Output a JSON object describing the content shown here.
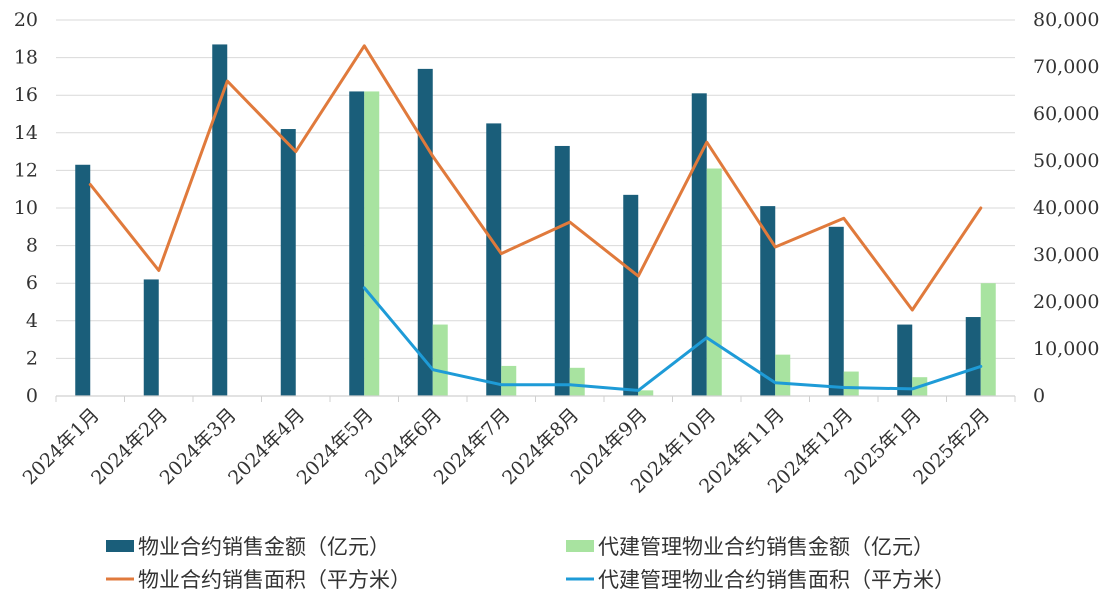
{
  "chart_data": {
    "type": "bar",
    "categories": [
      "2024年1月",
      "2024年2月",
      "2024年3月",
      "2024年4月",
      "2024年5月",
      "2024年6月",
      "2024年7月",
      "2024年8月",
      "2024年9月",
      "2024年10月",
      "2024年11月",
      "2024年12月",
      "2025年1月",
      "2025年2月"
    ],
    "bar_series": [
      {
        "name": "物业合约销售金额（亿元）",
        "color": "#1a5e7a",
        "values": [
          12.3,
          6.2,
          18.7,
          14.2,
          16.2,
          17.4,
          14.5,
          13.3,
          10.7,
          16.1,
          10.1,
          9.0,
          3.8,
          4.2
        ]
      },
      {
        "name": "代建管理物业合约销售金额（亿元）",
        "color": "#a8e3a0",
        "values": [
          null,
          null,
          null,
          null,
          16.2,
          3.8,
          1.6,
          1.5,
          0.3,
          12.1,
          2.2,
          1.3,
          1.0,
          6.0
        ]
      }
    ],
    "line_series": [
      {
        "name": "物业合约销售面积（平方米）",
        "color": "#e07a3c",
        "values": [
          45000,
          26700,
          67000,
          52000,
          74500,
          51000,
          30300,
          37000,
          25500,
          54000,
          31700,
          37800,
          18300,
          40000
        ]
      },
      {
        "name": "代建管理物业合约销售面积（平方米）",
        "color": "#1e9bd7",
        "values": [
          null,
          null,
          null,
          null,
          23000,
          5600,
          2400,
          2400,
          1200,
          12400,
          2800,
          1800,
          1500,
          6300
        ]
      }
    ],
    "y_left": {
      "min": 0,
      "max": 20,
      "ticks": [
        "0",
        "2",
        "4",
        "6",
        "8",
        "10",
        "12",
        "14",
        "16",
        "18",
        "20"
      ]
    },
    "y_right": {
      "min": 0,
      "max": 80000,
      "ticks": [
        "0",
        "10,000",
        "20,000",
        "30,000",
        "40,000",
        "50,000",
        "60,000",
        "70,000",
        "80,000"
      ]
    },
    "grid": true,
    "legend_position": "bottom"
  }
}
